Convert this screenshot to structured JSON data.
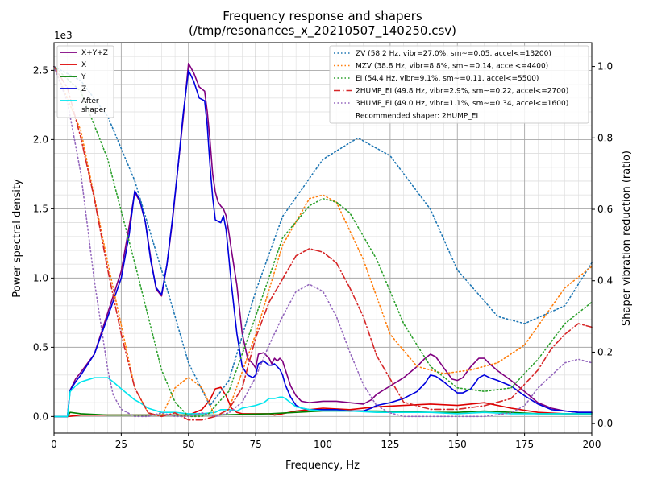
{
  "chart_data": {
    "type": "line",
    "title": "Frequency response and shapers",
    "subtitle": "(/tmp/resonances_x_20210507_140250.csv)",
    "xlabel": "Frequency, Hz",
    "ylabel": "Power spectral density",
    "y2label": "Shaper vibration reduction (ratio)",
    "y_offset_label": "1e3",
    "xlim": [
      0,
      200
    ],
    "ylim": [
      -0.12,
      2.7
    ],
    "y2lim": [
      -0.0267,
      1.0667
    ],
    "x_ticks": [
      0,
      25,
      50,
      75,
      100,
      125,
      150,
      175,
      200
    ],
    "x_tick_labels": [
      "0",
      "25",
      "50",
      "75",
      "100",
      "125",
      "150",
      "175",
      "200"
    ],
    "y_ticks": [
      0.0,
      0.5,
      1.0,
      1.5,
      2.0,
      2.5
    ],
    "y_tick_labels": [
      "0.0",
      "0.5",
      "1.0",
      "1.5",
      "2.0",
      "2.5"
    ],
    "y2_ticks": [
      0.0,
      0.2,
      0.4,
      0.6,
      0.8,
      1.0
    ],
    "y2_tick_labels": [
      "0.0",
      "0.2",
      "0.4",
      "0.6",
      "0.8",
      "1.0"
    ],
    "grid": true,
    "legend_left_position": "upper-left",
    "legend_right_position": "upper-right",
    "recommended_note": "Recommended shaper: 2HUMP_EI",
    "series": [
      {
        "name": "X+Y+Z",
        "axis": "left",
        "color": "#800080",
        "style": "solid",
        "width": 1.6,
        "x": [
          0,
          5,
          6,
          8,
          10,
          15,
          20,
          25,
          28,
          30,
          32,
          34,
          36,
          38,
          40,
          42,
          44,
          46,
          48,
          50,
          52,
          54,
          56,
          57,
          58,
          59,
          60,
          61,
          62,
          63,
          64,
          65,
          66,
          68,
          70,
          72,
          74,
          75,
          76,
          78,
          80,
          81,
          82,
          83,
          84,
          85,
          86,
          88,
          90,
          92,
          95,
          100,
          105,
          110,
          115,
          118,
          120,
          125,
          130,
          135,
          138,
          140,
          142,
          145,
          148,
          150,
          152,
          155,
          158,
          160,
          162,
          165,
          170,
          175,
          180,
          185,
          190,
          195,
          200
        ],
        "y": [
          0,
          0,
          0.19,
          0.27,
          0.32,
          0.45,
          0.75,
          1.05,
          1.38,
          1.62,
          1.55,
          1.4,
          1.14,
          0.92,
          0.87,
          1.1,
          1.4,
          1.78,
          2.15,
          2.55,
          2.48,
          2.38,
          2.35,
          2.2,
          2.0,
          1.75,
          1.62,
          1.55,
          1.52,
          1.5,
          1.45,
          1.33,
          1.2,
          0.95,
          0.6,
          0.42,
          0.38,
          0.35,
          0.45,
          0.46,
          0.42,
          0.38,
          0.42,
          0.4,
          0.42,
          0.4,
          0.34,
          0.22,
          0.15,
          0.11,
          0.1,
          0.11,
          0.11,
          0.1,
          0.09,
          0.12,
          0.16,
          0.22,
          0.28,
          0.36,
          0.42,
          0.45,
          0.43,
          0.35,
          0.27,
          0.26,
          0.28,
          0.36,
          0.42,
          0.42,
          0.38,
          0.33,
          0.26,
          0.18,
          0.1,
          0.06,
          0.04,
          0.03,
          0.03
        ]
      },
      {
        "name": "X",
        "axis": "left",
        "color": "#dd0000",
        "style": "solid",
        "width": 1.6,
        "x": [
          0,
          5,
          10,
          20,
          30,
          40,
          50,
          55,
          58,
          60,
          62,
          64,
          66,
          68,
          70,
          75,
          80,
          82,
          85,
          90,
          95,
          100,
          110,
          120,
          130,
          140,
          150,
          160,
          170,
          180,
          190,
          200
        ],
        "y": [
          0,
          0,
          0.01,
          0.01,
          0.01,
          0.01,
          0.01,
          0.05,
          0.12,
          0.2,
          0.21,
          0.15,
          0.06,
          0.03,
          0.02,
          0.02,
          0.02,
          0.01,
          0.02,
          0.04,
          0.05,
          0.06,
          0.05,
          0.07,
          0.08,
          0.09,
          0.08,
          0.1,
          0.06,
          0.03,
          0.02,
          0.02
        ]
      },
      {
        "name": "Y",
        "axis": "left",
        "color": "#008000",
        "style": "solid",
        "width": 1.6,
        "x": [
          0,
          5,
          6,
          10,
          20,
          40,
          60,
          80,
          100,
          120,
          140,
          150,
          160,
          170,
          180,
          190,
          200
        ],
        "y": [
          0,
          0,
          0.03,
          0.02,
          0.01,
          0.01,
          0.01,
          0.02,
          0.04,
          0.04,
          0.03,
          0.03,
          0.04,
          0.03,
          0.02,
          0.02,
          0.02
        ]
      },
      {
        "name": "Z",
        "axis": "left",
        "color": "#0000dd",
        "style": "solid",
        "width": 1.6,
        "x": [
          0,
          5,
          6,
          8,
          10,
          15,
          20,
          25,
          28,
          30,
          32,
          34,
          36,
          38,
          40,
          42,
          44,
          46,
          48,
          50,
          52,
          54,
          56,
          57,
          58,
          59,
          60,
          61,
          62,
          63,
          64,
          65,
          66,
          68,
          70,
          72,
          74,
          75,
          76,
          78,
          80,
          81,
          82,
          83,
          84,
          85,
          86,
          88,
          90,
          92,
          95,
          100,
          105,
          110,
          115,
          118,
          120,
          125,
          130,
          135,
          138,
          140,
          142,
          145,
          148,
          150,
          152,
          155,
          158,
          160,
          162,
          165,
          170,
          175,
          180,
          185,
          190,
          195,
          200
        ],
        "y": [
          0,
          0,
          0.19,
          0.25,
          0.3,
          0.45,
          0.72,
          1.0,
          1.32,
          1.63,
          1.56,
          1.4,
          1.12,
          0.93,
          0.88,
          1.1,
          1.42,
          1.78,
          2.18,
          2.5,
          2.42,
          2.3,
          2.28,
          2.1,
          1.82,
          1.58,
          1.42,
          1.41,
          1.4,
          1.45,
          1.35,
          1.15,
          0.95,
          0.6,
          0.36,
          0.3,
          0.28,
          0.3,
          0.38,
          0.4,
          0.37,
          0.37,
          0.38,
          0.36,
          0.34,
          0.3,
          0.23,
          0.14,
          0.08,
          0.06,
          0.05,
          0.05,
          0.05,
          0.04,
          0.04,
          0.06,
          0.08,
          0.1,
          0.13,
          0.18,
          0.24,
          0.3,
          0.29,
          0.25,
          0.2,
          0.17,
          0.17,
          0.2,
          0.28,
          0.3,
          0.28,
          0.26,
          0.22,
          0.15,
          0.09,
          0.05,
          0.04,
          0.03,
          0.03
        ]
      },
      {
        "name": "After\nshaper",
        "axis": "left",
        "color": "#00e5ee",
        "style": "solid",
        "width": 1.6,
        "x": [
          0,
          5,
          6,
          8,
          10,
          15,
          18,
          20,
          22,
          25,
          30,
          32,
          35,
          40,
          45,
          50,
          55,
          60,
          62,
          65,
          68,
          70,
          75,
          78,
          80,
          82,
          84,
          85,
          86,
          88,
          90,
          95,
          100,
          110,
          120,
          130,
          140,
          150,
          160,
          170,
          180,
          190,
          200
        ],
        "y": [
          0,
          0,
          0.18,
          0.22,
          0.25,
          0.28,
          0.28,
          0.28,
          0.25,
          0.2,
          0.12,
          0.1,
          0.06,
          0.03,
          0.03,
          0.02,
          0.02,
          0.03,
          0.05,
          0.05,
          0.04,
          0.06,
          0.08,
          0.1,
          0.13,
          0.13,
          0.14,
          0.14,
          0.13,
          0.1,
          0.07,
          0.05,
          0.04,
          0.04,
          0.03,
          0.03,
          0.03,
          0.02,
          0.03,
          0.02,
          0.02,
          0.02,
          0.02
        ]
      },
      {
        "name": "ZV (58.2 Hz, vibr=27.0%, sm~=0.05, accel<=13200)",
        "axis": "right",
        "color": "#1f77b4",
        "style": "dotted",
        "width": 1.6,
        "x": [
          0,
          10,
          20,
          30,
          40,
          50,
          58,
          65,
          75,
          85,
          100,
          113,
          125,
          140,
          150,
          165,
          175,
          190,
          200
        ],
        "y": [
          1.0,
          0.96,
          0.86,
          0.68,
          0.43,
          0.17,
          0.05,
          0.12,
          0.37,
          0.58,
          0.74,
          0.8,
          0.75,
          0.6,
          0.43,
          0.3,
          0.28,
          0.33,
          0.45
        ]
      },
      {
        "name": "MZV (38.8 Hz, vibr=8.8%, sm~=0.14, accel<=4400)",
        "axis": "right",
        "color": "#ff7f0e",
        "style": "dotted",
        "width": 1.6,
        "x": [
          0,
          10,
          20,
          30,
          35,
          40,
          45,
          50,
          55,
          60,
          65,
          75,
          85,
          95,
          100,
          105,
          115,
          125,
          135,
          145,
          155,
          165,
          175,
          190,
          200
        ],
        "y": [
          1.0,
          0.82,
          0.45,
          0.1,
          0.03,
          0.02,
          0.1,
          0.13,
          0.1,
          0.02,
          0.04,
          0.25,
          0.5,
          0.63,
          0.64,
          0.62,
          0.46,
          0.25,
          0.16,
          0.14,
          0.15,
          0.17,
          0.22,
          0.38,
          0.44
        ]
      },
      {
        "name": "EI (54.4 Hz, vibr=9.1%, sm~=0.11, accel<=5500)",
        "axis": "right",
        "color": "#2ca02c",
        "style": "dotted",
        "width": 1.6,
        "x": [
          0,
          10,
          20,
          30,
          40,
          45,
          50,
          55,
          58,
          60,
          65,
          75,
          85,
          95,
          100,
          105,
          110,
          120,
          130,
          140,
          150,
          160,
          170,
          180,
          190,
          200
        ],
        "y": [
          1.0,
          0.93,
          0.74,
          0.45,
          0.15,
          0.06,
          0.02,
          0.02,
          0.03,
          0.05,
          0.09,
          0.3,
          0.52,
          0.61,
          0.63,
          0.62,
          0.59,
          0.46,
          0.28,
          0.16,
          0.1,
          0.09,
          0.1,
          0.18,
          0.28,
          0.34
        ]
      },
      {
        "name": "2HUMP_EI (49.8 Hz, vibr=2.9%, sm~=0.22, accel<=2700)",
        "axis": "right",
        "color": "#d62728",
        "style": "dashdot",
        "width": 1.6,
        "x": [
          0,
          5,
          10,
          15,
          20,
          25,
          30,
          35,
          40,
          45,
          50,
          55,
          60,
          65,
          70,
          75,
          80,
          90,
          95,
          100,
          105,
          110,
          115,
          120,
          130,
          140,
          150,
          160,
          170,
          180,
          185,
          190,
          195,
          200
        ],
        "y": [
          1.0,
          0.94,
          0.8,
          0.63,
          0.43,
          0.25,
          0.1,
          0.03,
          0.02,
          0.03,
          0.01,
          0.01,
          0.02,
          0.04,
          0.1,
          0.24,
          0.34,
          0.47,
          0.49,
          0.48,
          0.45,
          0.38,
          0.3,
          0.19,
          0.06,
          0.04,
          0.04,
          0.05,
          0.07,
          0.15,
          0.21,
          0.25,
          0.28,
          0.27
        ]
      },
      {
        "name": "3HUMP_EI (49.0 Hz, vibr=1.1%, sm~=0.34, accel<=1600)",
        "axis": "right",
        "color": "#9467bd",
        "style": "dotted",
        "width": 1.6,
        "x": [
          0,
          5,
          10,
          15,
          20,
          22,
          25,
          30,
          35,
          40,
          45,
          50,
          55,
          60,
          65,
          70,
          75,
          80,
          85,
          90,
          95,
          100,
          105,
          110,
          115,
          120,
          125,
          130,
          140,
          150,
          160,
          170,
          175,
          180,
          190,
          195,
          200
        ],
        "y": [
          1.0,
          0.9,
          0.7,
          0.4,
          0.15,
          0.08,
          0.04,
          0.02,
          0.02,
          0.03,
          0.02,
          0.02,
          0.03,
          0.02,
          0.03,
          0.06,
          0.13,
          0.22,
          0.3,
          0.37,
          0.39,
          0.37,
          0.3,
          0.2,
          0.11,
          0.05,
          0.03,
          0.02,
          0.02,
          0.02,
          0.02,
          0.03,
          0.05,
          0.1,
          0.17,
          0.18,
          0.17
        ]
      }
    ]
  }
}
